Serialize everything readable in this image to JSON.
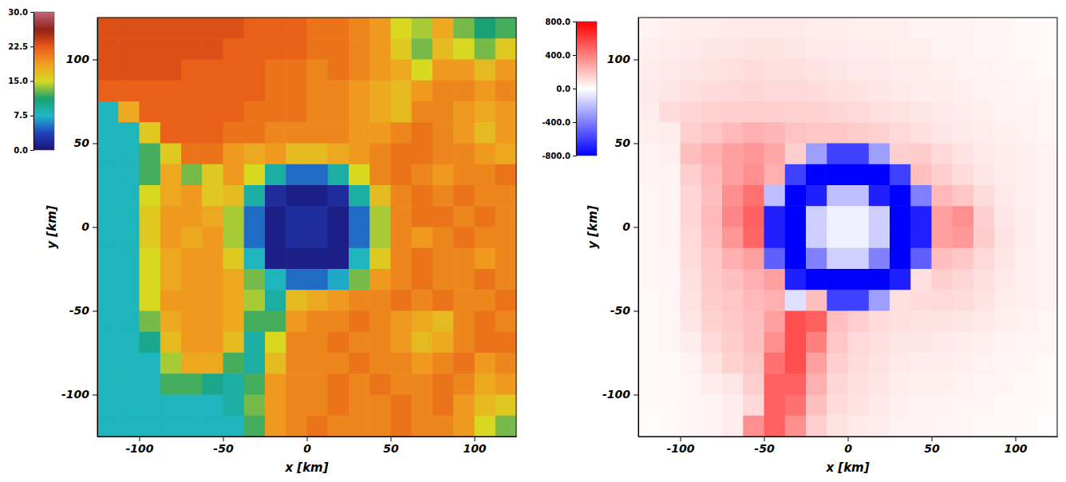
{
  "chart_data": [
    {
      "type": "heatmap",
      "x_label": "x [km]",
      "y_label": "y [km]",
      "xlim": [
        -125,
        125
      ],
      "ylim": [
        -125,
        125
      ],
      "xticks": [
        -100,
        -50,
        0,
        50,
        100
      ],
      "yticks": [
        -100,
        -50,
        0,
        50,
        100
      ],
      "color_range": [
        0,
        30
      ],
      "color_ticks": [
        {
          "value": 0,
          "label": "0.0"
        },
        {
          "value": 7.5,
          "label": "7.5"
        },
        {
          "value": 15,
          "label": "15.0"
        },
        {
          "value": 22.5,
          "label": "22.5"
        },
        {
          "value": 30,
          "label": "30.0"
        }
      ],
      "x": [
        -118.75,
        -106.25,
        -93.75,
        -81.25,
        -68.75,
        -56.25,
        -43.75,
        -31.25,
        -18.75,
        -6.25,
        6.25,
        18.75,
        31.25,
        43.75,
        56.25,
        68.75,
        81.25,
        93.75,
        106.25,
        118.75
      ],
      "y": [
        118.75,
        106.25,
        93.75,
        81.25,
        68.75,
        56.25,
        43.75,
        31.25,
        18.75,
        6.25,
        -6.25,
        -18.75,
        -31.25,
        -43.75,
        -56.25,
        -68.75,
        -81.25,
        -93.75,
        -106.25,
        -118.75
      ],
      "values": [
        [
          23,
          23,
          23,
          23,
          23,
          23,
          23,
          22,
          22,
          22,
          21,
          21,
          20,
          19,
          15,
          14,
          18,
          13,
          11,
          12
        ],
        [
          23,
          23,
          23,
          23,
          23,
          23,
          22,
          22,
          22,
          22,
          21,
          21,
          20,
          19,
          16,
          13,
          17,
          15,
          13,
          16
        ],
        [
          23,
          23,
          23,
          23,
          22,
          22,
          22,
          22,
          21,
          21,
          20,
          21,
          20,
          19,
          18,
          15,
          19,
          19,
          17,
          19
        ],
        [
          22,
          22,
          22,
          22,
          22,
          22,
          22,
          22,
          21,
          21,
          20,
          20,
          19,
          18,
          17,
          19,
          20,
          20,
          19,
          20
        ],
        [
          8,
          18,
          22,
          22,
          22,
          22,
          22,
          21,
          21,
          21,
          20,
          20,
          19,
          18,
          17,
          20,
          20,
          19,
          18,
          19
        ],
        [
          8,
          8,
          16,
          22,
          22,
          22,
          21,
          21,
          20,
          20,
          20,
          20,
          19,
          19,
          20,
          21,
          20,
          19,
          17,
          19
        ],
        [
          8,
          8,
          12,
          16,
          21,
          21,
          19,
          18,
          19,
          17,
          17,
          18,
          19,
          20,
          21,
          21,
          20,
          20,
          19,
          18
        ],
        [
          8,
          8,
          12,
          18,
          13,
          16,
          19,
          15,
          9,
          5,
          5,
          9,
          15,
          20,
          21,
          20,
          19,
          20,
          20,
          21
        ],
        [
          8,
          8,
          15,
          18,
          19,
          16,
          17,
          9,
          2,
          1,
          1,
          2,
          9,
          17,
          20,
          21,
          20,
          21,
          20,
          20
        ],
        [
          8,
          8,
          16,
          19,
          19,
          18,
          14,
          5,
          1,
          2,
          2,
          1,
          5,
          14,
          20,
          21,
          21,
          20,
          21,
          20
        ],
        [
          8,
          8,
          16,
          19,
          18,
          19,
          14,
          5,
          1,
          2,
          2,
          1,
          5,
          14,
          20,
          19,
          20,
          21,
          20,
          20
        ],
        [
          8,
          8,
          15,
          18,
          19,
          19,
          16,
          8,
          1,
          1,
          1,
          1,
          8,
          16,
          20,
          21,
          20,
          20,
          19,
          20
        ],
        [
          8,
          8,
          15,
          18,
          19,
          19,
          18,
          13,
          8,
          5,
          5,
          7,
          13,
          19,
          20,
          21,
          20,
          20,
          21,
          20
        ],
        [
          8,
          8,
          15,
          19,
          19,
          19,
          18,
          14,
          9,
          17,
          18,
          19,
          20,
          20,
          21,
          20,
          21,
          20,
          20,
          21
        ],
        [
          8,
          8,
          13,
          18,
          19,
          19,
          18,
          12,
          12,
          19,
          20,
          20,
          21,
          20,
          19,
          18,
          17,
          20,
          21,
          20
        ],
        [
          8,
          8,
          10,
          17,
          19,
          19,
          17,
          9,
          15,
          20,
          20,
          21,
          20,
          20,
          19,
          17,
          18,
          20,
          21,
          21
        ],
        [
          8,
          8,
          8,
          14,
          18,
          18,
          12,
          9,
          17,
          20,
          20,
          20,
          21,
          20,
          20,
          19,
          20,
          21,
          19,
          20
        ],
        [
          8,
          8,
          8,
          12,
          12,
          10,
          9,
          12,
          19,
          20,
          20,
          21,
          20,
          21,
          20,
          20,
          21,
          20,
          18,
          19
        ],
        [
          8,
          8,
          8,
          8,
          8,
          8,
          9,
          13,
          19,
          20,
          20,
          21,
          20,
          20,
          21,
          20,
          21,
          19,
          17,
          16
        ],
        [
          8,
          8,
          8,
          8,
          8,
          8,
          8,
          12,
          19,
          20,
          21,
          20,
          20,
          20,
          21,
          20,
          20,
          19,
          15,
          13
        ]
      ]
    },
    {
      "type": "heatmap",
      "x_label": "x [km]",
      "y_label": "y [km]",
      "xlim": [
        -125,
        125
      ],
      "ylim": [
        -125,
        125
      ],
      "xticks": [
        -100,
        -50,
        0,
        50,
        100
      ],
      "yticks": [
        -100,
        -50,
        0,
        50,
        100
      ],
      "color_range": [
        -800,
        800
      ],
      "color_ticks": [
        {
          "value": -800,
          "label": "-800.0"
        },
        {
          "value": -400,
          "label": "-400.0"
        },
        {
          "value": 0,
          "label": "0.0"
        },
        {
          "value": 400,
          "label": "400.0"
        },
        {
          "value": 800,
          "label": "800.0"
        }
      ],
      "x": [
        -118.75,
        -106.25,
        -93.75,
        -81.25,
        -68.75,
        -56.25,
        -43.75,
        -31.25,
        -18.75,
        -6.25,
        6.25,
        18.75,
        31.25,
        43.75,
        56.25,
        68.75,
        81.25,
        93.75,
        106.25,
        118.75
      ],
      "y": [
        118.75,
        106.25,
        93.75,
        81.25,
        68.75,
        56.25,
        43.75,
        31.25,
        18.75,
        6.25,
        -6.25,
        -18.75,
        -31.25,
        -43.75,
        -56.25,
        -68.75,
        -81.25,
        -93.75,
        -106.25,
        -118.75
      ],
      "values": [
        [
          40,
          50,
          60,
          60,
          70,
          70,
          70,
          70,
          60,
          60,
          50,
          50,
          50,
          40,
          40,
          40,
          30,
          30,
          20,
          20
        ],
        [
          50,
          60,
          70,
          80,
          80,
          90,
          90,
          80,
          70,
          70,
          60,
          60,
          50,
          50,
          40,
          40,
          30,
          30,
          20,
          20
        ],
        [
          60,
          70,
          80,
          90,
          100,
          110,
          100,
          100,
          90,
          80,
          70,
          70,
          60,
          60,
          50,
          40,
          40,
          30,
          30,
          20
        ],
        [
          70,
          80,
          100,
          110,
          120,
          130,
          120,
          120,
          110,
          100,
          90,
          80,
          70,
          60,
          60,
          50,
          40,
          40,
          30,
          30
        ],
        [
          60,
          110,
          130,
          140,
          150,
          150,
          150,
          140,
          140,
          130,
          120,
          100,
          90,
          80,
          70,
          60,
          50,
          40,
          40,
          30
        ],
        [
          50,
          60,
          150,
          180,
          220,
          250,
          230,
          190,
          180,
          180,
          160,
          140,
          120,
          100,
          80,
          70,
          60,
          50,
          40,
          30
        ],
        [
          40,
          50,
          200,
          250,
          300,
          330,
          280,
          150,
          -300,
          -600,
          -600,
          -300,
          150,
          160,
          120,
          90,
          70,
          60,
          50,
          40
        ],
        [
          40,
          40,
          150,
          220,
          300,
          350,
          250,
          -600,
          -800,
          -800,
          -800,
          -800,
          -600,
          200,
          150,
          110,
          80,
          60,
          50,
          40
        ],
        [
          30,
          40,
          130,
          200,
          350,
          450,
          -200,
          -800,
          -700,
          -200,
          -200,
          -700,
          -800,
          -400,
          220,
          180,
          110,
          70,
          50,
          40
        ],
        [
          30,
          40,
          130,
          220,
          380,
          500,
          -700,
          -800,
          -150,
          -50,
          -50,
          -150,
          -800,
          -700,
          300,
          350,
          150,
          80,
          60,
          40
        ],
        [
          30,
          40,
          120,
          200,
          330,
          480,
          -700,
          -800,
          -150,
          -50,
          -50,
          -150,
          -800,
          -700,
          300,
          320,
          160,
          90,
          60,
          40
        ],
        [
          30,
          30,
          110,
          180,
          250,
          300,
          -500,
          -800,
          -400,
          -150,
          -150,
          -400,
          -800,
          -500,
          200,
          180,
          120,
          80,
          50,
          40
        ],
        [
          30,
          30,
          100,
          170,
          200,
          250,
          300,
          -700,
          -800,
          -800,
          -800,
          -800,
          -700,
          100,
          150,
          130,
          100,
          70,
          50,
          40
        ],
        [
          20,
          30,
          90,
          160,
          180,
          220,
          250,
          -100,
          200,
          -600,
          -600,
          -300,
          100,
          110,
          120,
          110,
          90,
          60,
          50,
          40
        ],
        [
          20,
          30,
          80,
          140,
          170,
          200,
          300,
          550,
          500,
          200,
          150,
          110,
          100,
          90,
          90,
          80,
          70,
          50,
          40,
          30
        ],
        [
          20,
          30,
          60,
          120,
          160,
          200,
          350,
          550,
          400,
          180,
          120,
          100,
          80,
          80,
          70,
          60,
          50,
          40,
          30,
          30
        ],
        [
          20,
          20,
          40,
          90,
          140,
          180,
          450,
          550,
          300,
          150,
          110,
          90,
          70,
          60,
          60,
          50,
          40,
          30,
          30,
          20
        ],
        [
          20,
          20,
          30,
          60,
          80,
          150,
          500,
          500,
          250,
          130,
          100,
          80,
          60,
          50,
          50,
          40,
          30,
          30,
          20,
          20
        ],
        [
          20,
          20,
          30,
          40,
          60,
          120,
          500,
          450,
          200,
          110,
          90,
          70,
          50,
          40,
          40,
          30,
          30,
          20,
          20,
          20
        ],
        [
          10,
          20,
          30,
          40,
          60,
          350,
          500,
          350,
          150,
          90,
          70,
          60,
          40,
          40,
          30,
          30,
          20,
          20,
          20,
          10
        ]
      ]
    }
  ]
}
